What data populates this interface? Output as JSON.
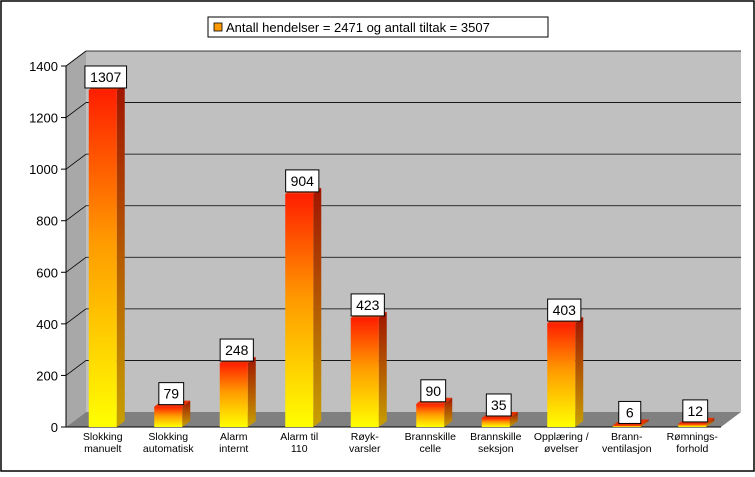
{
  "chart_data": {
    "type": "bar",
    "title": "",
    "xlabel": "",
    "ylabel": "",
    "legend": {
      "label": "Antall hendelser = 2471 og antall tiltak = 3507",
      "placement": "top"
    },
    "categories": [
      [
        "Slokking",
        "manuelt"
      ],
      [
        "Slokking",
        "automatisk"
      ],
      [
        "Alarm",
        "internt"
      ],
      [
        "Alarm til",
        "110"
      ],
      [
        "Røyk-",
        "varsler"
      ],
      [
        "Brannskille",
        "celle"
      ],
      [
        "Brannskille",
        "seksjon"
      ],
      [
        "Opplæring /",
        "øvelser"
      ],
      [
        "Brann-",
        "ventilasjon"
      ],
      [
        "Rømnings-",
        "forhold"
      ]
    ],
    "values": [
      1307,
      79,
      248,
      904,
      423,
      90,
      35,
      403,
      6,
      12
    ],
    "ylim": [
      0,
      1400
    ],
    "yticks": [
      0,
      200,
      400,
      600,
      800,
      1000,
      1200,
      1400
    ],
    "grid": true,
    "colors": {
      "bar_bottom": "#ffff00",
      "bar_top": "#ff2000",
      "bar_side": "#b01800",
      "bar_top_face": "#e83000",
      "plot_back": "#c0c0c0",
      "floor": "#808080",
      "legend_swatch": "#ff9900"
    }
  }
}
